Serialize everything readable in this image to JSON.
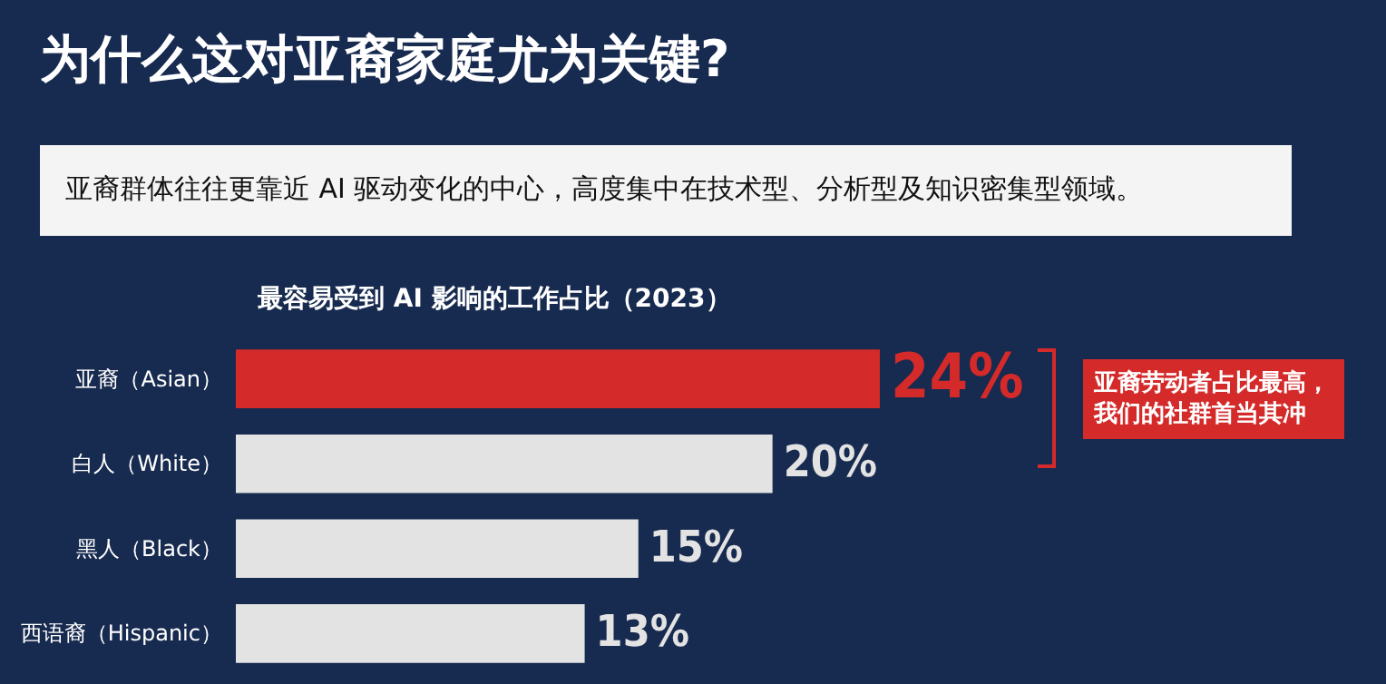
{
  "chart_data": {
    "type": "bar",
    "orientation": "horizontal",
    "title": "为什么这对亚裔家庭尤为关键?",
    "subtitle": "亚裔群体往往更靠近 AI 驱动变化的中心，高度集中在技术型、分析型及知识密集型领域。",
    "ylabel": null,
    "annotations": [
      "最容易受到 AI 影响的工作占比（2023）",
      "亚裔劳动者占比最高，我们的社群首当其冲"
    ],
    "categories": [
      "亚裔（Asian）",
      "白人（White）",
      "黑人（Black）",
      "西语裔（Hispanic）"
    ],
    "values": [
      24,
      20,
      15,
      13
    ],
    "colors": [
      "#d42a2a",
      "#e3e3e3",
      "#e3e3e3",
      "#e3e3e3"
    ],
    "value_labels": [
      "24%",
      "20%",
      "15%",
      "13%"
    ]
  }
}
